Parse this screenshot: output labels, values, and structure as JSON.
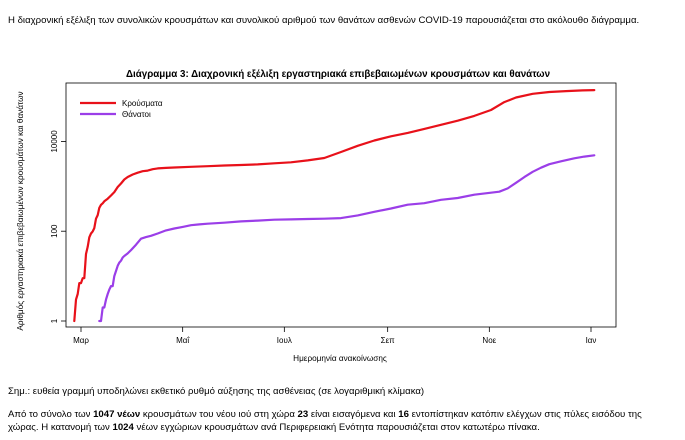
{
  "intro_text": "Η διαχρονική εξέλιξη των συνολικών κρουσμάτων και συνολικού αριθμού των θανάτων ασθενών COVID-19 παρουσιάζεται στο ακόλουθο διάγραμμα.",
  "note_text": "Σημ.: ευθεία γραμμή υποδηλώνει εκθετικό ρυθμό αύξησης της ασθένειας (σε λογαριθμική κλίμακα)",
  "summary": {
    "p1": "Από το σύνολο των ",
    "b1": "1047 νέων",
    "p2": " κρουσμάτων του νέου ιού στη χώρα ",
    "b2": "23",
    "p3": " είναι εισαγόμενα και ",
    "b3": "16",
    "p4": " εντοπίστηκαν κατόπιν ελέγχων στις πύλες εισόδου της χώρας. Η κατανομή των ",
    "b4": "1024",
    "p5": " νέων εγχώριων κρουσμάτων ανά Περιφερειακή Ενότητα παρουσιάζεται στον κατωτέρω πίνακα."
  },
  "chart_data": {
    "type": "line",
    "title": "Διάγραμμα 3: Διαχρονική εξέλιξη εργαστηριακά επιβεβαιωμένων κρουσμάτων και θανάτων",
    "xlabel": "Ημερομηνία ανακοίνωσης",
    "ylabel": "Αριθμός εργαστηριακά επιβεβαιωμένων κρουσμάτων και θανάτων",
    "y_scale": "log",
    "ylim": [
      1,
      200000
    ],
    "xlim": [
      -5,
      325
    ],
    "x_unit": "days since 2020-02-26",
    "x_ticks": [
      {
        "label": "Μαρ",
        "x": 4
      },
      {
        "label": "Μαΐ",
        "x": 65
      },
      {
        "label": "Ιουλ",
        "x": 126
      },
      {
        "label": "Σεπ",
        "x": 188
      },
      {
        "label": "Νοε",
        "x": 249
      },
      {
        "label": "Ιαν",
        "x": 310
      }
    ],
    "y_ticks": [
      {
        "label": "1",
        "y": 1
      },
      {
        "label": "100",
        "y": 100
      },
      {
        "label": "10000",
        "y": 10000
      }
    ],
    "legend_position": "top-left",
    "colors": {
      "cases": "#e8111a",
      "deaths": "#9b3ee8"
    },
    "series": [
      {
        "name": "Κρούσματα",
        "color": "#e8111a",
        "points": [
          [
            0,
            1
          ],
          [
            1,
            3
          ],
          [
            2,
            4
          ],
          [
            3,
            7
          ],
          [
            4,
            7
          ],
          [
            5,
            9
          ],
          [
            6,
            9
          ],
          [
            7,
            31
          ],
          [
            8,
            45
          ],
          [
            9,
            73
          ],
          [
            10,
            89
          ],
          [
            11,
            99
          ],
          [
            12,
            117
          ],
          [
            13,
            190
          ],
          [
            14,
            228
          ],
          [
            15,
            331
          ],
          [
            16,
            387
          ],
          [
            17,
            418
          ],
          [
            18,
            464
          ],
          [
            19,
            495
          ],
          [
            20,
            530
          ],
          [
            22,
            624
          ],
          [
            24,
            743
          ],
          [
            26,
            966
          ],
          [
            28,
            1156
          ],
          [
            30,
            1415
          ],
          [
            32,
            1613
          ],
          [
            35,
            1832
          ],
          [
            38,
            2011
          ],
          [
            41,
            2170
          ],
          [
            44,
            2235
          ],
          [
            47,
            2401
          ],
          [
            50,
            2506
          ],
          [
            55,
            2576
          ],
          [
            60,
            2626
          ],
          [
            70,
            2726
          ],
          [
            80,
            2810
          ],
          [
            90,
            2905
          ],
          [
            100,
            2980
          ],
          [
            110,
            3080
          ],
          [
            120,
            3250
          ],
          [
            130,
            3432
          ],
          [
            140,
            3770
          ],
          [
            150,
            4279
          ],
          [
            160,
            5800
          ],
          [
            170,
            8000
          ],
          [
            180,
            10500
          ],
          [
            190,
            13000
          ],
          [
            200,
            15500
          ],
          [
            210,
            19000
          ],
          [
            220,
            23500
          ],
          [
            230,
            29000
          ],
          [
            240,
            37000
          ],
          [
            250,
            50000
          ],
          [
            258,
            75000
          ],
          [
            265,
            95000
          ],
          [
            275,
            115000
          ],
          [
            285,
            126000
          ],
          [
            295,
            132000
          ],
          [
            305,
            137000
          ],
          [
            312,
            139000
          ]
        ]
      },
      {
        "name": "Θάνατοι",
        "color": "#9b3ee8",
        "points": [
          [
            15,
            1
          ],
          [
            16,
            1
          ],
          [
            17,
            2
          ],
          [
            18,
            2
          ],
          [
            19,
            3
          ],
          [
            20,
            4
          ],
          [
            21,
            5
          ],
          [
            22,
            6
          ],
          [
            23,
            6
          ],
          [
            24,
            10
          ],
          [
            25,
            13
          ],
          [
            26,
            17
          ],
          [
            27,
            20
          ],
          [
            28,
            22
          ],
          [
            29,
            26
          ],
          [
            30,
            28
          ],
          [
            32,
            32
          ],
          [
            34,
            38
          ],
          [
            37,
            50
          ],
          [
            40,
            68
          ],
          [
            43,
            74
          ],
          [
            46,
            79
          ],
          [
            50,
            89
          ],
          [
            55,
            104
          ],
          [
            60,
            115
          ],
          [
            65,
            125
          ],
          [
            70,
            136
          ],
          [
            75,
            142
          ],
          [
            80,
            147
          ],
          [
            90,
            155
          ],
          [
            100,
            165
          ],
          [
            110,
            172
          ],
          [
            120,
            180
          ],
          [
            130,
            183
          ],
          [
            140,
            187
          ],
          [
            150,
            190
          ],
          [
            160,
            196
          ],
          [
            170,
            225
          ],
          [
            180,
            270
          ],
          [
            190,
            320
          ],
          [
            200,
            390
          ],
          [
            210,
            420
          ],
          [
            220,
            500
          ],
          [
            230,
            550
          ],
          [
            240,
            650
          ],
          [
            250,
            720
          ],
          [
            255,
            760
          ],
          [
            260,
            900
          ],
          [
            265,
            1200
          ],
          [
            270,
            1600
          ],
          [
            275,
            2100
          ],
          [
            280,
            2600
          ],
          [
            285,
            3100
          ],
          [
            292,
            3600
          ],
          [
            300,
            4200
          ],
          [
            306,
            4600
          ],
          [
            312,
            4900
          ]
        ]
      }
    ]
  }
}
